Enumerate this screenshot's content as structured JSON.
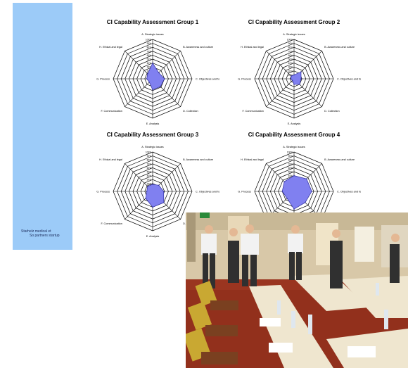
{
  "sidebar": {
    "color": "#9ccbf8",
    "brand_line1": "Starhelz medical et",
    "brand_line2": "So partners startup"
  },
  "axes": [
    "A. Strategic issues",
    "B. Awareness and culture",
    "C. Objectives and focus",
    "D. Collection",
    "E. Analysis",
    "F. Communication",
    "G. Process",
    "H. Ethical and legal"
  ],
  "scale": [
    "0",
    "10%",
    "20%",
    "30%",
    "40%",
    "50%",
    "60%",
    "70%",
    "80%",
    "90%",
    "100%"
  ],
  "chart_data": [
    {
      "type": "radar",
      "title": "CI Capability Assessment Group 1",
      "series": [
        {
          "values": [
            40,
            22,
            30,
            28,
            28,
            12,
            15,
            18
          ]
        }
      ],
      "rlim": [
        0,
        100
      ],
      "color": "#8080f0"
    },
    {
      "type": "radar",
      "title": "CI Capability Assessment Group 2",
      "series": [
        {
          "values": [
            10,
            25,
            18,
            20,
            14,
            6,
            8,
            10
          ]
        }
      ],
      "rlim": [
        0,
        100
      ],
      "color": "#8080f0"
    },
    {
      "type": "radar",
      "title": "CI Capability Assessment Group 3",
      "series": [
        {
          "values": [
            18,
            22,
            28,
            40,
            40,
            25,
            15,
            18
          ]
        }
      ],
      "rlim": [
        0,
        100
      ],
      "color": "#8080f0"
    },
    {
      "type": "radar",
      "title": "CI Capability Assessment Group 4",
      "series": [
        {
          "values": [
            40,
            45,
            45,
            40,
            45,
            25,
            30,
            35
          ]
        }
      ],
      "rlim": [
        0,
        100
      ],
      "color": "#8080f0"
    }
  ],
  "photo": {
    "description_icon": "meeting-room-photo"
  }
}
